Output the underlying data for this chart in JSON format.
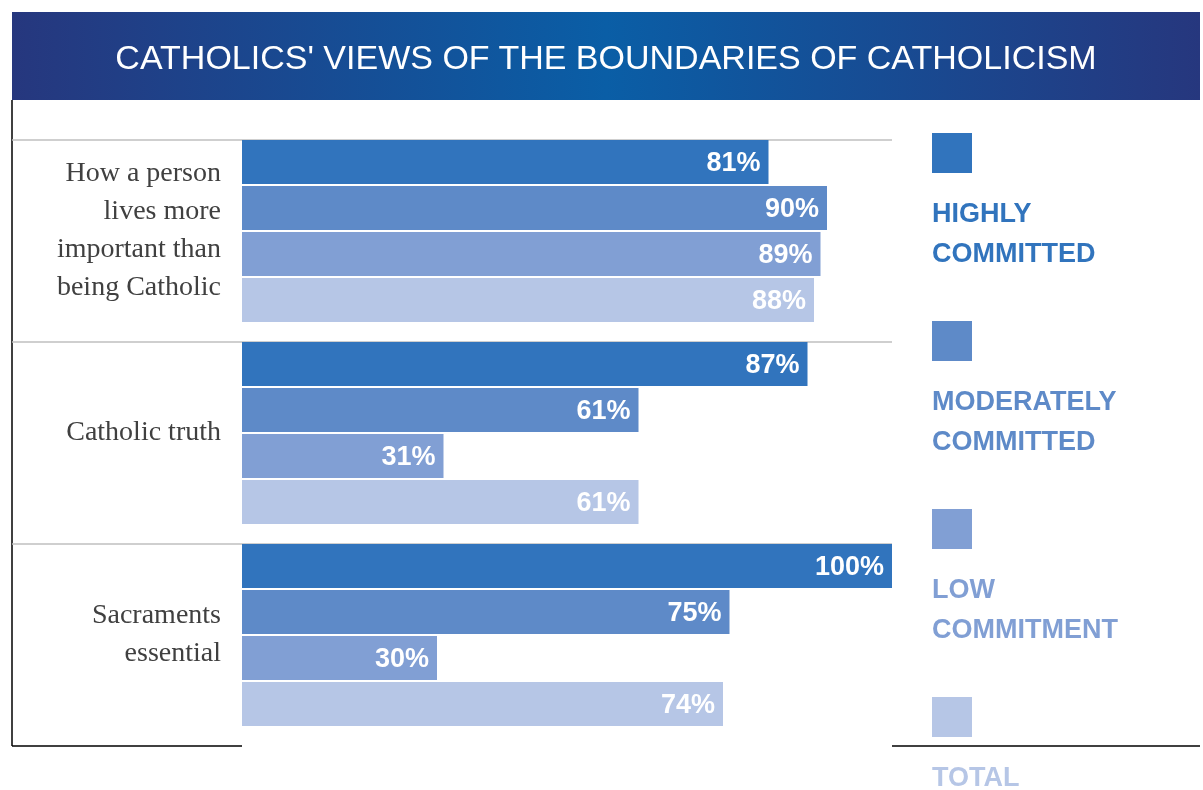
{
  "chart_data": {
    "type": "bar",
    "orientation": "horizontal",
    "title": "CATHOLICS' VIEWS OF THE BOUNDARIES OF CATHOLICISM",
    "categories": [
      "How a person lives more important than being Catholic",
      "Catholic truth",
      "Sacraments essential"
    ],
    "series": [
      {
        "name": "HIGHLY COMMITTED",
        "color": "#3174bd",
        "values": [
          81,
          87,
          100
        ],
        "value_labels": [
          "81%",
          "87%",
          "100%"
        ]
      },
      {
        "name": "MODERATELY COMMITTED",
        "color": "#5e8ac8",
        "values": [
          90,
          61,
          75
        ],
        "value_labels": [
          "90%",
          "61%",
          "75%"
        ]
      },
      {
        "name": "LOW COMMITMENT",
        "color": "#819fd4",
        "values": [
          89,
          31,
          30
        ],
        "value_labels": [
          "89%",
          "31%",
          "30%"
        ]
      },
      {
        "name": "TOTAL",
        "color": "#b6c6e6",
        "values": [
          88,
          61,
          74
        ],
        "value_labels": [
          "88%",
          "61%",
          "74%"
        ]
      }
    ],
    "xlim": [
      0,
      100
    ],
    "tick_labels": "y",
    "legend": "right"
  }
}
